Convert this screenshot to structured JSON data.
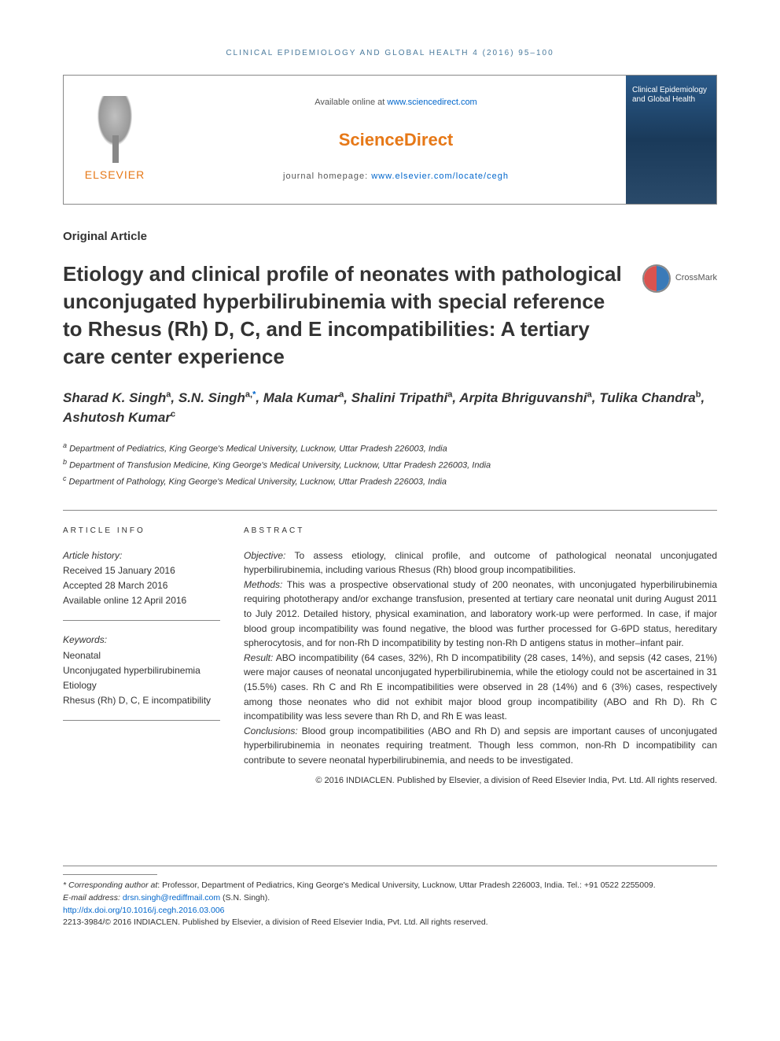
{
  "journal_header": "CLINICAL EPIDEMIOLOGY AND GLOBAL HEALTH 4 (2016) 95–100",
  "header": {
    "available_text": "Available online at ",
    "available_url": "www.sciencedirect.com",
    "sd_logo": "ScienceDirect",
    "homepage_label": "journal homepage: ",
    "homepage_url": "www.elsevier.com/locate/cegh",
    "elsevier_label": "ELSEVIER",
    "cover_title": "Clinical Epidemiology and Global Health"
  },
  "article_type": "Original Article",
  "title": "Etiology and clinical profile of neonates with pathological unconjugated hyperbilirubinemia with special reference to Rhesus (Rh) D, C, and E incompatibilities: A tertiary care center experience",
  "crossmark": "CrossMark",
  "authors": [
    {
      "name": "Sharad K. Singh",
      "sup": "a"
    },
    {
      "name": "S.N. Singh",
      "sup": "a,",
      "corr": "*"
    },
    {
      "name": "Mala Kumar",
      "sup": "a"
    },
    {
      "name": "Shalini Tripathi",
      "sup": "a"
    },
    {
      "name": "Arpita Bhriguvanshi",
      "sup": "a"
    },
    {
      "name": "Tulika Chandra",
      "sup": "b"
    },
    {
      "name": "Ashutosh Kumar",
      "sup": "c"
    }
  ],
  "affiliations": [
    {
      "sup": "a",
      "text": "Department of Pediatrics, King George's Medical University, Lucknow, Uttar Pradesh 226003, India"
    },
    {
      "sup": "b",
      "text": "Department of Transfusion Medicine, King George's Medical University, Lucknow, Uttar Pradesh 226003, India"
    },
    {
      "sup": "c",
      "text": "Department of Pathology, King George's Medical University, Lucknow, Uttar Pradesh 226003, India"
    }
  ],
  "info": {
    "header": "ARTICLE INFO",
    "history_label": "Article history:",
    "received": "Received 15 January 2016",
    "accepted": "Accepted 28 March 2016",
    "online": "Available online 12 April 2016",
    "keywords_label": "Keywords:",
    "keywords": [
      "Neonatal",
      "Unconjugated hyperbilirubinemia",
      "Etiology",
      "Rhesus (Rh) D, C, E incompatibility"
    ]
  },
  "abstract": {
    "header": "ABSTRACT",
    "objective_label": "Objective:",
    "objective": " To assess etiology, clinical profile, and outcome of pathological neonatal unconjugated hyperbilirubinemia, including various Rhesus (Rh) blood group incompatibilities.",
    "methods_label": "Methods:",
    "methods": " This was a prospective observational study of 200 neonates, with unconjugated hyperbilirubinemia requiring phototherapy and/or exchange transfusion, presented at tertiary care neonatal unit during August 2011 to July 2012. Detailed history, physical examination, and laboratory work-up were performed. In case, if major blood group incompatibility was found negative, the blood was further processed for G-6PD status, hereditary spherocytosis, and for non-Rh D incompatibility by testing non-Rh D antigens status in mother–infant pair.",
    "result_label": "Result:",
    "result": " ABO incompatibility (64 cases, 32%), Rh D incompatibility (28 cases, 14%), and sepsis (42 cases, 21%) were major causes of neonatal unconjugated hyperbilirubinemia, while the etiology could not be ascertained in 31 (15.5%) cases. Rh C and Rh E incompatibilities were observed in 28 (14%) and 6 (3%) cases, respectively among those neonates who did not exhibit major blood group incompatibility (ABO and Rh D). Rh C incompatibility was less severe than Rh D, and Rh E was least.",
    "conclusions_label": "Conclusions:",
    "conclusions": " Blood group incompatibilities (ABO and Rh D) and sepsis are important causes of unconjugated hyperbilirubinemia in neonates requiring treatment. Though less common, non-Rh D incompatibility can contribute to severe neonatal hyperbilirubinemia, and needs to be investigated.",
    "copyright": "© 2016 INDIACLEN. Published by Elsevier, a division of Reed Elsevier India, Pvt. Ltd. All rights reserved."
  },
  "footnote": {
    "corr_label": "* Corresponding author at",
    "corr_text": ": Professor, Department of Pediatrics, King George's Medical University, Lucknow, Uttar Pradesh 226003, India. Tel.: +91 0522 2255009.",
    "email_label": "E-mail address: ",
    "email": "drsn.singh@rediffmail.com",
    "email_author": " (S.N. Singh).",
    "doi": "http://dx.doi.org/10.1016/j.cegh.2016.03.006",
    "issn": "2213-3984/© 2016 INDIACLEN. Published by Elsevier, a division of Reed Elsevier India, Pvt. Ltd. All rights reserved."
  }
}
